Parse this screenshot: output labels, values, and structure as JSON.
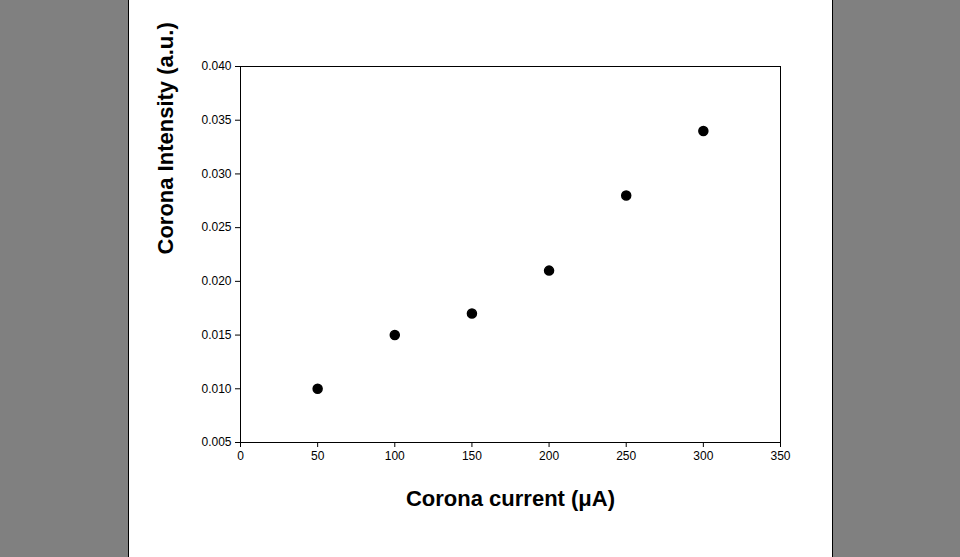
{
  "chart_data": {
    "type": "scatter",
    "x_label": "Corona current (μA)",
    "y_label": "Corona Intensity (a.u.)",
    "x": [
      50,
      100,
      150,
      200,
      250,
      300
    ],
    "values": [
      0.01,
      0.015,
      0.017,
      0.021,
      0.028,
      0.034
    ],
    "color": "#000000",
    "marker": "circle",
    "xlim": [
      0,
      350
    ],
    "xticks": [
      0,
      50,
      100,
      150,
      200,
      250,
      300,
      350
    ],
    "ylim": [
      0.005,
      0.04
    ],
    "yticks": [
      0.005,
      {
        "value": 0.01,
        "label": "0.010"
      },
      0.015,
      {
        "value": 0.02,
        "label": "0.020"
      },
      0.025,
      {
        "value": 0.03,
        "label": "0.030"
      },
      0.035,
      {
        "value": 0.04,
        "label": "0.040"
      }
    ],
    "grid": false
  }
}
